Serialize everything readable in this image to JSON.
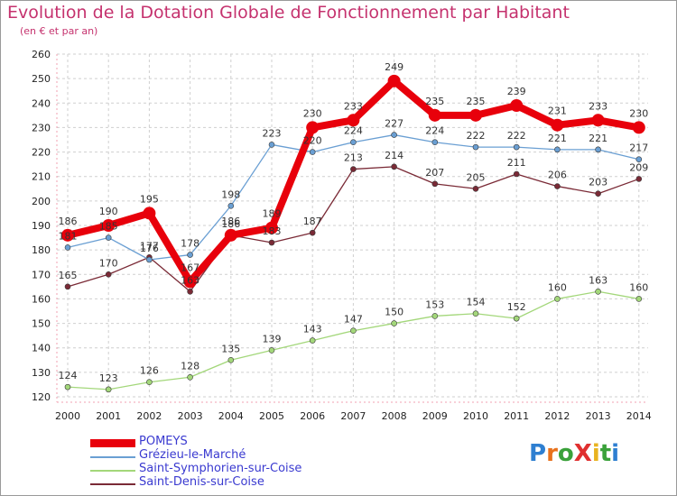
{
  "chart_data": {
    "type": "line",
    "title": "Evolution de la Dotation Globale de Fonctionnement par Habitant",
    "subtitle": "(en € et par an)",
    "xlabel": "",
    "ylabel": "",
    "ylim": [
      120,
      260
    ],
    "yticks": [
      120,
      130,
      140,
      150,
      160,
      170,
      180,
      190,
      200,
      210,
      220,
      230,
      240,
      250,
      260
    ],
    "categories": [
      "2000",
      "2001",
      "2002",
      "2003",
      "2004",
      "2005",
      "2006",
      "2007",
      "2008",
      "2009",
      "2010",
      "2011",
      "2012",
      "2013",
      "2014"
    ],
    "grid": true,
    "legend_position": "bottom-left",
    "series": [
      {
        "name": "POMEYS",
        "color": "#e8000b",
        "values": [
          186,
          190,
          195,
          167,
          186,
          189,
          230,
          233,
          249,
          235,
          235,
          239,
          231,
          233,
          230
        ],
        "labels": [
          "186",
          "190",
          "195",
          "167",
          "186",
          "189",
          "230",
          "233",
          "249",
          "235",
          "235",
          "239",
          "231",
          "233",
          "230"
        ]
      },
      {
        "name": "Grézieu-le-Marché",
        "color": "#6a9fd3",
        "values": [
          181,
          185,
          176,
          178,
          198,
          223,
          220,
          224,
          227,
          224,
          222,
          222,
          221,
          221,
          217
        ],
        "labels": [
          "181",
          "185",
          "176",
          "178",
          "198",
          "223",
          "220",
          "224",
          "227",
          "224",
          "222",
          "222",
          "221",
          "221",
          "217"
        ]
      },
      {
        "name": "Saint-Symphorien-sur-Coise",
        "color": "#a3d77a",
        "values": [
          124,
          123,
          126,
          128,
          135,
          139,
          143,
          147,
          150,
          153,
          154,
          152,
          160,
          163,
          160
        ],
        "labels": [
          "124",
          "123",
          "126",
          "128",
          "135",
          "139",
          "143",
          "147",
          "150",
          "153",
          "154",
          "152",
          "160",
          "163",
          "160"
        ]
      },
      {
        "name": "Saint-Denis-sur-Coise",
        "color": "#7a2a36",
        "values": [
          165,
          170,
          177,
          163,
          186,
          183,
          187,
          213,
          214,
          207,
          205,
          211,
          206,
          203,
          209
        ],
        "labels": [
          "165",
          "170",
          "177",
          "163",
          "186",
          "183",
          "187",
          "213",
          "214",
          "207",
          "205",
          "211",
          "206",
          "203",
          "209"
        ]
      }
    ]
  },
  "legend": {
    "items": [
      "POMEYS",
      "Grézieu-le-Marché",
      "Saint-Symphorien-sur-Coise",
      "Saint-Denis-sur-Coise"
    ]
  },
  "brand": {
    "text": "ProXiti",
    "letter_colors": [
      "#2e7fd1",
      "#e8711c",
      "#3aa13a",
      "#e03030",
      "#e8b320",
      "#3aa13a",
      "#2e7fd1"
    ]
  }
}
